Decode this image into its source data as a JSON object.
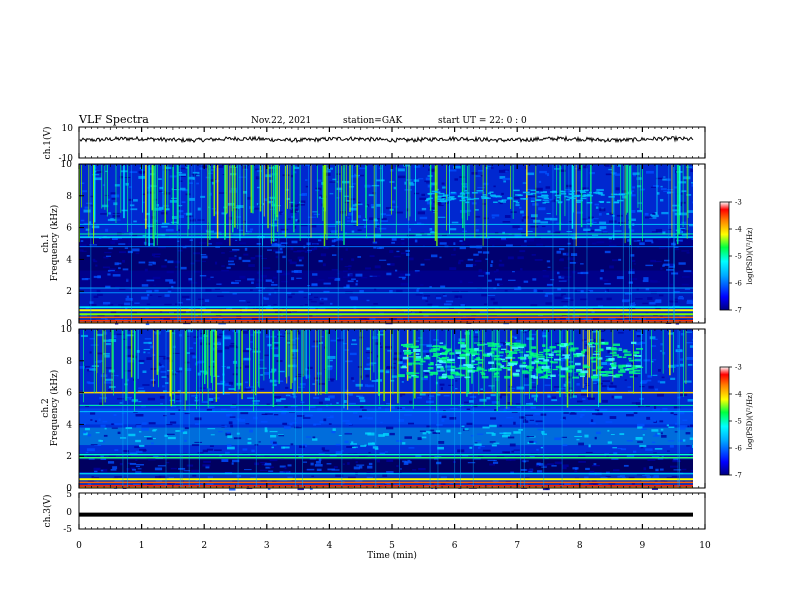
{
  "header": {
    "title": "VLF Spectra",
    "date": "Nov.22, 2021",
    "station": "station=GAK",
    "start_ut": "start UT =  22: 0  : 0"
  },
  "chart_data": [
    {
      "type": "line",
      "ylabel": "ch.1(V)",
      "xlim": [
        0,
        10
      ],
      "ylim": [
        -10,
        10
      ],
      "yticks": [
        "10",
        "-10"
      ],
      "level": 2
    },
    {
      "type": "heatmap",
      "ylabel_top": "ch.1",
      "ylabel": "Frequency (kHz)",
      "xlim": [
        0,
        10
      ],
      "ylim": [
        0,
        10
      ],
      "yticks": [
        "0",
        "2",
        "4",
        "6",
        "8",
        "10"
      ],
      "colorbar": {
        "label": "log(PSD)(V²/Hz)",
        "ticks": [
          "-3",
          "-4",
          "-5",
          "-6",
          "-7"
        ],
        "range": [
          -7,
          -3
        ]
      }
    },
    {
      "type": "heatmap",
      "ylabel_top": "ch.2",
      "ylabel": "Frequency (kHz)",
      "xlim": [
        0,
        10
      ],
      "ylim": [
        0,
        10
      ],
      "yticks": [
        "0",
        "2",
        "4",
        "6",
        "8",
        "10"
      ],
      "colorbar": {
        "label": "log(PSD)(V²/Hz)",
        "ticks": [
          "-3",
          "-4",
          "-5",
          "-6",
          "-7"
        ],
        "range": [
          -7,
          -3
        ]
      }
    },
    {
      "type": "line",
      "ylabel": "ch.3(V)",
      "xlim": [
        0,
        10
      ],
      "ylim": [
        -5,
        5
      ],
      "yticks": [
        "5",
        "0",
        "-5"
      ],
      "level": -1,
      "xlabel": "Time (min)",
      "xticks": [
        "0",
        "1",
        "2",
        "3",
        "4",
        "5",
        "6",
        "7",
        "8",
        "9",
        "10"
      ]
    }
  ]
}
